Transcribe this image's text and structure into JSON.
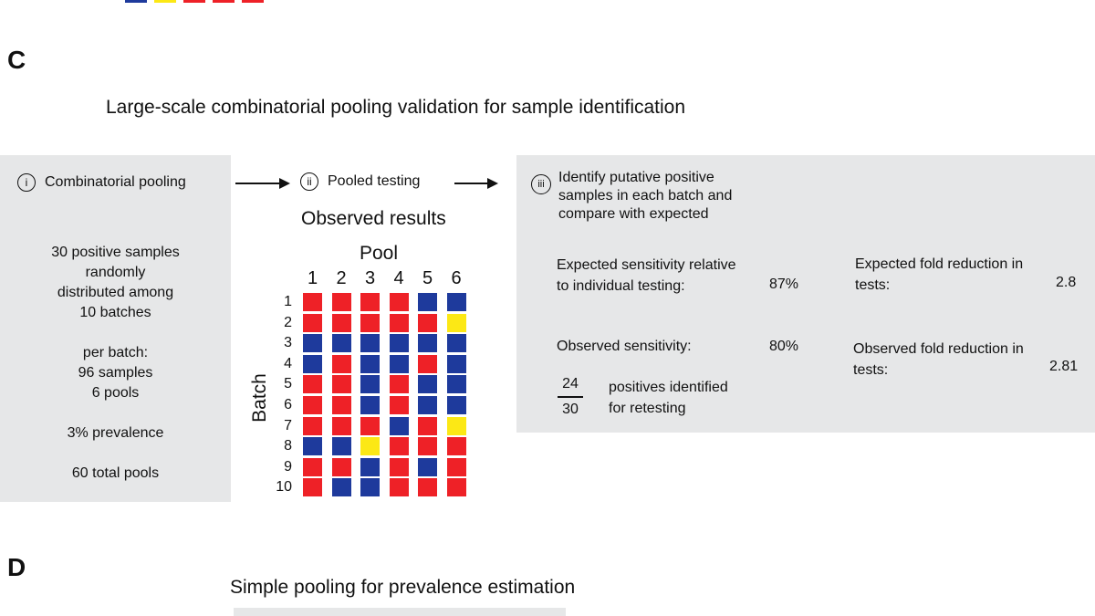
{
  "panels": {
    "c_letter": "C",
    "d_letter": "D"
  },
  "c": {
    "title": "Large-scale combinatorial pooling validation for sample identification",
    "step1": {
      "numeral": "i",
      "title": "Combinatorial pooling",
      "lines_a": [
        "30 positive samples",
        "randomly",
        "distributed among",
        "10 batches"
      ],
      "lines_b": [
        "per batch:",
        "96 samples",
        "6 pools"
      ],
      "prevalence": "3% prevalence",
      "total_pools": "60 total pools"
    },
    "step2": {
      "numeral": "ii",
      "title": "Pooled testing",
      "results_title": "Observed results",
      "pool_label": "Pool",
      "batch_label": "Batch",
      "pools": [
        "1",
        "2",
        "3",
        "4",
        "5",
        "6"
      ],
      "batches": [
        "1",
        "2",
        "3",
        "4",
        "5",
        "6",
        "7",
        "8",
        "9",
        "10"
      ],
      "grid": [
        [
          "R",
          "R",
          "R",
          "R",
          "B",
          "B"
        ],
        [
          "R",
          "R",
          "R",
          "R",
          "R",
          "Y"
        ],
        [
          "B",
          "B",
          "B",
          "B",
          "B",
          "B"
        ],
        [
          "B",
          "R",
          "B",
          "B",
          "R",
          "B"
        ],
        [
          "R",
          "R",
          "B",
          "R",
          "B",
          "B"
        ],
        [
          "R",
          "R",
          "B",
          "R",
          "B",
          "B"
        ],
        [
          "R",
          "R",
          "R",
          "B",
          "R",
          "Y"
        ],
        [
          "B",
          "B",
          "Y",
          "R",
          "R",
          "R"
        ],
        [
          "R",
          "R",
          "B",
          "R",
          "B",
          "R"
        ],
        [
          "R",
          "B",
          "B",
          "R",
          "R",
          "R"
        ]
      ],
      "colors": {
        "R": "#ee2127",
        "B": "#1e3a9c",
        "Y": "#fce815"
      }
    },
    "step3": {
      "numeral": "iii",
      "title_lines": [
        "Identify putative positive",
        "samples in each batch and",
        "compare with expected"
      ],
      "expected_sensitivity_lines": [
        "Expected sensitivity relative",
        "to individual testing:"
      ],
      "expected_sensitivity_value": "87%",
      "observed_sensitivity_label": "Observed sensitivity:",
      "observed_sensitivity_value": "80%",
      "fraction_numerator": "24",
      "fraction_denominator": "30",
      "fraction_label_lines": [
        "positives identified",
        "for retesting"
      ],
      "expected_fold_lines": [
        "Expected fold reduction in",
        "tests:"
      ],
      "expected_fold_value": "2.8",
      "observed_fold_lines": [
        "Observed fold reduction in",
        "tests:"
      ],
      "observed_fold_value": "2.81"
    }
  },
  "d": {
    "title": "Simple pooling for prevalence estimation"
  }
}
